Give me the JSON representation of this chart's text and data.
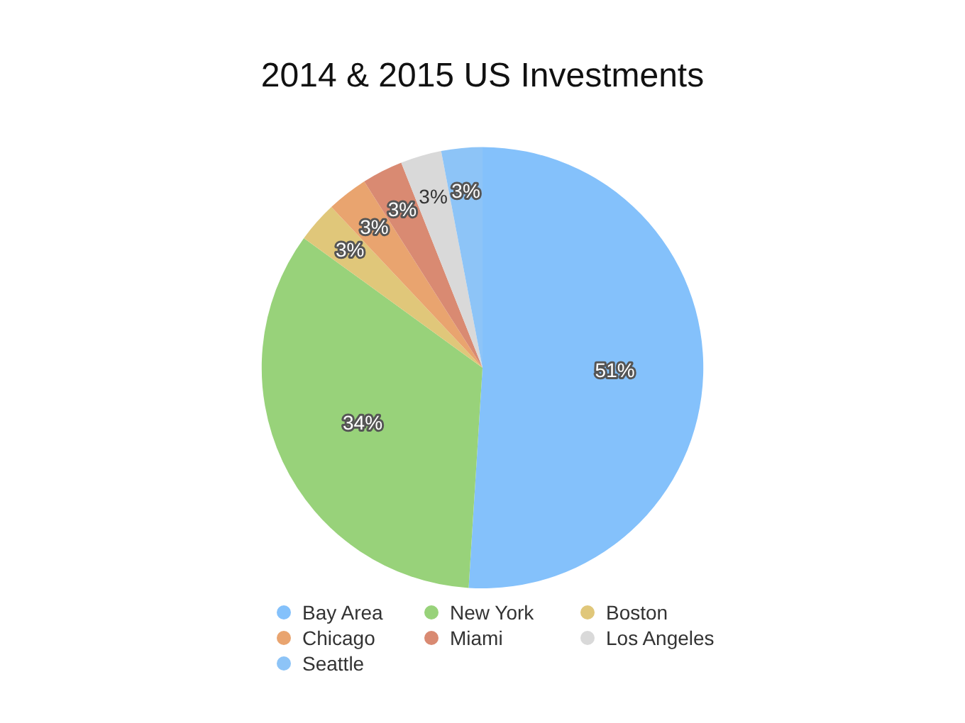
{
  "chart_data": {
    "type": "pie",
    "title": "2014 & 2015 US Investments",
    "categories": [
      "Bay Area",
      "New York",
      "Boston",
      "Chicago",
      "Miami",
      "Los Angeles",
      "Seattle"
    ],
    "values": [
      51,
      34,
      3,
      3,
      3,
      3,
      3
    ],
    "colors": [
      "#84c1fb",
      "#98d27a",
      "#e0c77a",
      "#e9a46f",
      "#d98a72",
      "#d9d9d9",
      "#8dc4f7"
    ],
    "value_labels": [
      "51%",
      "34%",
      "3%",
      "3%",
      "3%",
      "3%",
      "3%"
    ],
    "legend": "bottom"
  }
}
